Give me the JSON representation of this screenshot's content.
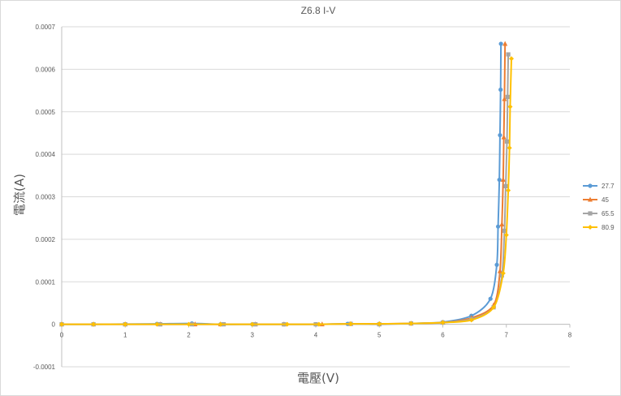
{
  "chart_data": {
    "type": "scatter",
    "title": "Z6.8 I-V",
    "xlabel": "電壓(V)",
    "ylabel": "電流(A)",
    "xlim": [
      0,
      8
    ],
    "ylim": [
      -0.0001,
      0.0007
    ],
    "x_ticks": [
      "0",
      "1",
      "2",
      "3",
      "4",
      "5",
      "6",
      "7",
      "8"
    ],
    "y_ticks": [
      "-0.0001",
      "0",
      "0.0001",
      "0.0002",
      "0.0003",
      "0.0004",
      "0.0005",
      "0.0006",
      "0.0007"
    ],
    "grid": "horizontal",
    "legend_position": "right",
    "series": [
      {
        "name": "27.7",
        "color": "#5B9BD5",
        "marker": "circle",
        "x": [
          0,
          0.5,
          1,
          1.5,
          2.05,
          2.5,
          3,
          3.5,
          4,
          4.5,
          5,
          5.5,
          6,
          6.45,
          6.75,
          6.85,
          6.87,
          6.89,
          6.9,
          6.91,
          6.915
        ],
        "y": [
          0,
          0,
          5e-07,
          1e-06,
          2e-06,
          0,
          0,
          0,
          0,
          1e-06,
          1e-06,
          2e-06,
          5e-06,
          2e-05,
          6e-05,
          0.00014,
          0.00023,
          0.00034,
          0.000445,
          0.000552,
          0.00066
        ]
      },
      {
        "name": "45",
        "color": "#ED7D31",
        "marker": "triangle",
        "x": [
          0,
          0.5,
          1,
          1.55,
          2.1,
          2.5,
          3.05,
          3.5,
          4.1,
          4.55,
          5,
          5.5,
          6,
          6.45,
          6.8,
          6.9,
          6.93,
          6.95,
          6.96,
          6.97,
          6.98
        ],
        "y": [
          0,
          0,
          0,
          0,
          0,
          0,
          0,
          0,
          0,
          1e-06,
          1e-06,
          2e-06,
          4e-06,
          1.5e-05,
          4.5e-05,
          0.000125,
          0.000235,
          0.00034,
          0.00044,
          0.00053,
          0.00066
        ]
      },
      {
        "name": "65.5",
        "color": "#A5A5A5",
        "marker": "square",
        "x": [
          0,
          0.5,
          1,
          1.55,
          2.05,
          2.55,
          3.05,
          3.5,
          4,
          4.55,
          5,
          5.5,
          6,
          6.45,
          6.8,
          6.93,
          6.97,
          6.99,
          7.01,
          7.02,
          7.03
        ],
        "y": [
          0,
          0,
          0,
          0,
          0,
          0,
          0,
          0,
          0,
          1e-06,
          0,
          2e-06,
          4e-06,
          1.2e-05,
          4e-05,
          0.000115,
          0.00022,
          0.000325,
          0.00043,
          0.000535,
          0.000635
        ]
      },
      {
        "name": "80.9",
        "color": "#FFC000",
        "marker": "diamond",
        "x": [
          0,
          0.5,
          1,
          1.5,
          2,
          2.5,
          3,
          3.55,
          4.05,
          4.55,
          5,
          5.5,
          6,
          6.45,
          6.8,
          6.95,
          7,
          7.03,
          7.05,
          7.06,
          7.08
        ],
        "y": [
          0,
          0,
          0,
          0,
          0,
          0,
          0,
          0,
          0,
          1e-06,
          1e-06,
          2e-06,
          4e-06,
          1e-05,
          4e-05,
          0.00012,
          0.00021,
          0.000315,
          0.000415,
          0.000512,
          0.000625
        ]
      }
    ]
  }
}
